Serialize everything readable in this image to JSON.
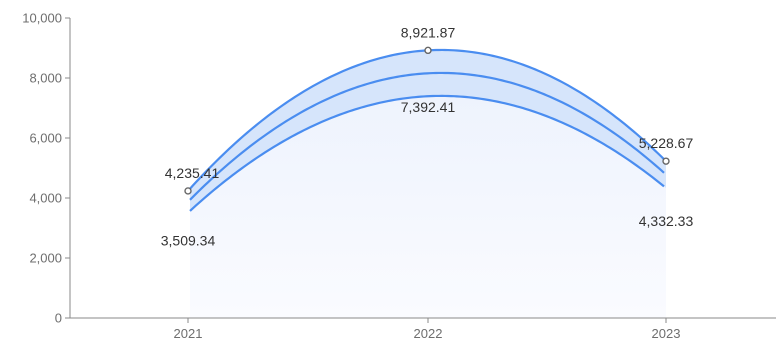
{
  "chart_data": {
    "type": "area",
    "categories": [
      "2021",
      "2022",
      "2023"
    ],
    "y_ticks": [
      "0",
      "2,000",
      "4,000",
      "6,000",
      "8,000",
      "10,000"
    ],
    "ylim": [
      0,
      10000
    ],
    "grid": false,
    "series": [
      {
        "values": [
          4235.41,
          8921.87,
          5228.67
        ]
      },
      {
        "values": [
          3509.34,
          7392.41,
          4332.33
        ]
      }
    ],
    "upper_labels": [
      "4,235.41",
      "8,921.87",
      "5,228.67"
    ],
    "lower_labels": [
      "3,509.34",
      "7,392.41",
      "4,332.33"
    ],
    "colors": {
      "line": "#4a8df0",
      "band_fill": "#cfe0fa",
      "under_fill": "#f6f8fe",
      "axis": "#8a8a8a",
      "marker": "#666666"
    }
  }
}
